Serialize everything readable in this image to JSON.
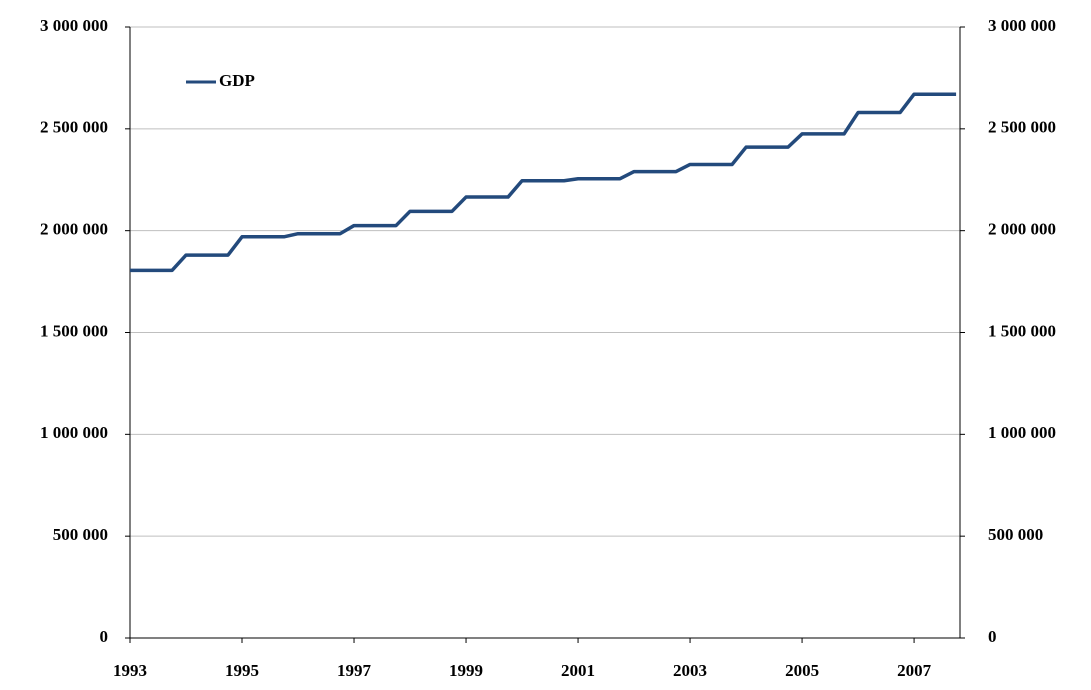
{
  "chart_data": {
    "type": "line",
    "x": [
      1993,
      1993.25,
      1993.5,
      1993.75,
      1994,
      1994.25,
      1994.5,
      1994.75,
      1995,
      1995.25,
      1995.5,
      1995.75,
      1996,
      1996.25,
      1996.5,
      1996.75,
      1997,
      1997.25,
      1997.5,
      1997.75,
      1998,
      1998.25,
      1998.5,
      1998.75,
      1999,
      1999.25,
      1999.5,
      1999.75,
      2000,
      2000.25,
      2000.5,
      2000.75,
      2001,
      2001.25,
      2001.5,
      2001.75,
      2002,
      2002.25,
      2002.5,
      2002.75,
      2003,
      2003.25,
      2003.5,
      2003.75,
      2004,
      2004.25,
      2004.5,
      2004.75,
      2005,
      2005.25,
      2005.5,
      2005.75,
      2006,
      2006.25,
      2006.5,
      2006.75,
      2007,
      2007.25,
      2007.5,
      2007.75
    ],
    "series": [
      {
        "name": "GDP",
        "color": "#234a7c",
        "values": [
          1805000,
          1805000,
          1805000,
          1805000,
          1880000,
          1880000,
          1880000,
          1880000,
          1970000,
          1970000,
          1970000,
          1970000,
          1985000,
          1985000,
          1985000,
          1985000,
          2025000,
          2025000,
          2025000,
          2025000,
          2095000,
          2095000,
          2095000,
          2095000,
          2165000,
          2165000,
          2165000,
          2165000,
          2245000,
          2245000,
          2245000,
          2245000,
          2255000,
          2255000,
          2255000,
          2255000,
          2290000,
          2290000,
          2290000,
          2290000,
          2325000,
          2325000,
          2325000,
          2325000,
          2410000,
          2410000,
          2410000,
          2410000,
          2475000,
          2475000,
          2475000,
          2475000,
          2580000,
          2580000,
          2580000,
          2580000,
          2670000,
          2670000,
          2670000,
          2670000
        ]
      }
    ],
    "xlim": [
      1993,
      2007.82
    ],
    "xticks": [
      1993,
      1995,
      1997,
      1999,
      2001,
      2003,
      2005,
      2007
    ],
    "ylim": [
      0,
      3000000
    ],
    "yticks": [
      0,
      {
        "value": 500000,
        "label": "500 000"
      },
      {
        "value": 1000000,
        "label": "1 000 000"
      },
      {
        "value": 1500000,
        "label": "1 500 000"
      },
      {
        "value": 2000000,
        "label": "2 000 000"
      },
      {
        "value": 2500000,
        "label": "2 500 000"
      },
      {
        "value": 3000000,
        "label": "3 000 000"
      }
    ],
    "y2lim": [
      0,
      3000000
    ],
    "y2ticks": [
      0,
      {
        "value": 500000,
        "label": "500 000"
      },
      {
        "value": 1000000,
        "label": "1 000 000"
      },
      {
        "value": 1500000,
        "label": "1 500 000"
      },
      {
        "value": 2000000,
        "label": "2 000 000"
      },
      {
        "value": 2500000,
        "label": "2 500 000"
      },
      {
        "value": 3000000,
        "label": "3 000 000"
      }
    ],
    "grid": true,
    "legend": "upper-left"
  }
}
